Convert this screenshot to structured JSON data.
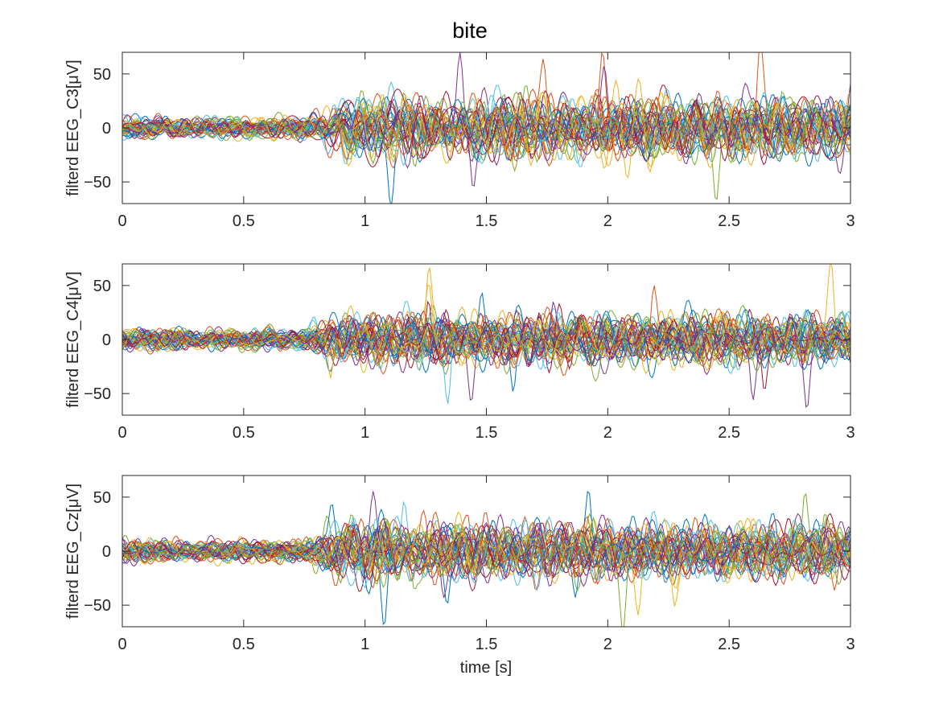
{
  "figure": {
    "title": "bite",
    "xlabel": "time [s]"
  },
  "chart_data": [
    {
      "type": "line",
      "ylabel": "filterd EEG_C3[μV]",
      "xlim": [
        0,
        3
      ],
      "ylim": [
        -70,
        70
      ],
      "xticks": [
        0,
        0.5,
        1,
        1.5,
        2,
        2.5,
        3
      ],
      "xtick_labels": [
        "0",
        "0.5",
        "1",
        "1.5",
        "2",
        "2.5",
        "3"
      ],
      "yticks": [
        -50,
        0,
        50
      ],
      "ytick_labels": [
        "−50",
        "0",
        "50"
      ],
      "grid": false,
      "onset_s": 0.8,
      "baseline_amplitude": 7,
      "active_amplitude": 20,
      "peak_amplitude": 66,
      "n_traces": 40
    },
    {
      "type": "line",
      "ylabel": "filterd EEG_C4[μV]",
      "xlim": [
        0,
        3
      ],
      "ylim": [
        -70,
        70
      ],
      "xticks": [
        0,
        0.5,
        1,
        1.5,
        2,
        2.5,
        3
      ],
      "xtick_labels": [
        "0",
        "0.5",
        "1",
        "1.5",
        "2",
        "2.5",
        "3"
      ],
      "yticks": [
        -50,
        0,
        50
      ],
      "ytick_labels": [
        "−50",
        "0",
        "50"
      ],
      "grid": false,
      "onset_s": 0.78,
      "baseline_amplitude": 7,
      "active_amplitude": 17,
      "peak_amplitude": 65,
      "n_traces": 40
    },
    {
      "type": "line",
      "ylabel": "filterd EEG_Cz[μV]",
      "xlim": [
        0,
        3
      ],
      "ylim": [
        -70,
        70
      ],
      "xticks": [
        0,
        0.5,
        1,
        1.5,
        2,
        2.5,
        3
      ],
      "xtick_labels": [
        "0",
        "0.5",
        "1",
        "1.5",
        "2",
        "2.5",
        "3"
      ],
      "yticks": [
        -50,
        0,
        50
      ],
      "ytick_labels": [
        "−50",
        "0",
        "50"
      ],
      "grid": false,
      "onset_s": 0.8,
      "baseline_amplitude": 7,
      "active_amplitude": 18,
      "peak_amplitude": 60,
      "n_traces": 40
    }
  ],
  "colors": {
    "series_cycle": [
      "#0072BD",
      "#D95319",
      "#EDB120",
      "#7E2F8E",
      "#77AC30",
      "#4DBEEE",
      "#A2142F"
    ],
    "axes": "#262626"
  }
}
